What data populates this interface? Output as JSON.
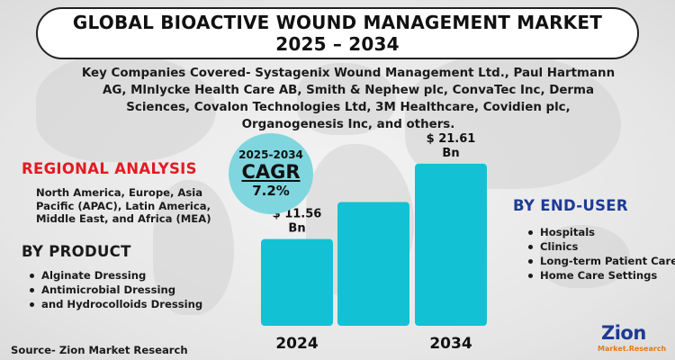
{
  "title": {
    "line1": "GLOBAL BIOACTIVE WOUND MANAGEMENT MARKET",
    "line2": "2025 – 2034"
  },
  "companies": "Key Companies Covered- Systagenix Wound Management Ltd., Paul Hartmann AG, Mlnlycke Health Care AB, Smith & Nephew plc, ConvaTec Inc, Derma Sciences, Covalon Technologies Ltd, 3M Healthcare, Covidien plc, Organogenesis Inc, and others.",
  "cagr": {
    "period": "2025-2034",
    "label": "CAGR",
    "value": "7.2%"
  },
  "regional": {
    "title": "REGIONAL ANALYSIS",
    "text": "North America, Europe, Asia Pacific (APAC), Latin America, Middle East, and Africa (MEA)"
  },
  "product": {
    "title": "BY PRODUCT",
    "items": [
      "Alginate Dressing",
      "Antimicrobial Dressing",
      "and Hydrocolloids Dressing"
    ]
  },
  "enduser": {
    "title": "BY END-USER",
    "items": [
      "Hospitals",
      "Clinics",
      "Long-term Patient Care",
      "Home Care Settings"
    ]
  },
  "source": "Source- Zion Market Research",
  "logo": {
    "brand": "Zion",
    "sub": "Market.Research"
  },
  "colors": {
    "bar": "#12c2d4",
    "regional_title": "#e11b22",
    "enduser_title": "#1f3a93",
    "cagr_circle": "#7fd6de"
  },
  "chart_data": {
    "type": "bar",
    "categories": [
      "2024",
      "",
      "2034"
    ],
    "values": [
      11.56,
      16.5,
      21.61
    ],
    "value_labels": [
      "$ 11.56\nBn",
      "",
      "$ 21.61\nBn"
    ],
    "unit": "Bn",
    "ylim": [
      0,
      24
    ],
    "grid": false,
    "legend": "none"
  }
}
